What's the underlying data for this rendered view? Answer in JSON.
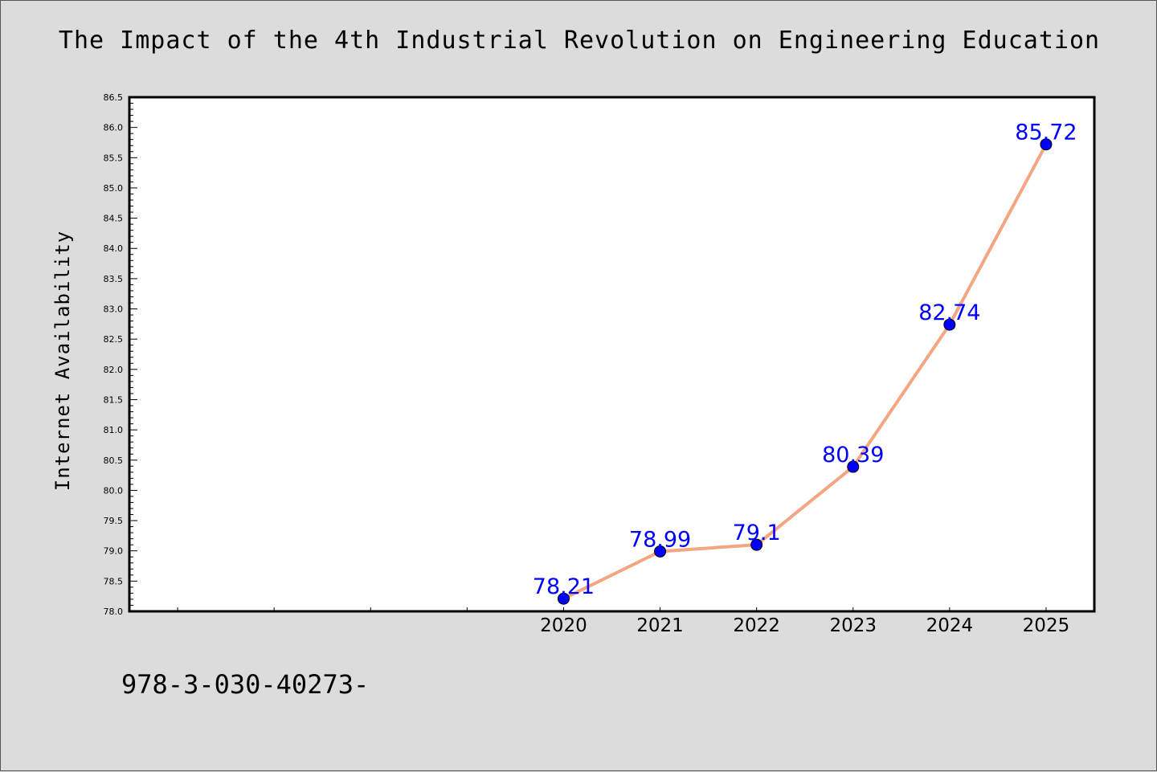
{
  "chart_data": {
    "type": "line",
    "title": "The Impact of the 4th Industrial Revolution on Engineering Education",
    "xlabel": "",
    "ylabel": "Internet Availability",
    "x": [
      2020,
      2021,
      2022,
      2023,
      2024,
      2025
    ],
    "x_tick_labels": [
      "2020",
      "2021",
      "2022",
      "2023",
      "2024",
      "2025"
    ],
    "series": [
      {
        "values": [
          78.21,
          78.99,
          79.1,
          80.39,
          82.74,
          85.72
        ],
        "data_labels": [
          "78.21",
          "78.99",
          "79.1",
          "80.39",
          "82.74",
          "85.72"
        ],
        "line_color": "#f4a582",
        "marker_color": "#0000ff"
      }
    ],
    "ylim": [
      78.0,
      86.5
    ],
    "xlim": [
      2015.5,
      2025.5
    ],
    "y_tick_labels": [
      "78.0",
      "78.5",
      "79.0",
      "79.5",
      "80.0",
      "80.5",
      "81.0",
      "81.5",
      "82.0",
      "82.5",
      "83.0",
      "83.5",
      "84.0",
      "84.5",
      "85.0",
      "85.5",
      "86.0",
      "86.5"
    ],
    "grid": false,
    "legend": "none"
  },
  "footer_text": "978-3-030-40273-",
  "colors": {
    "background": "#dcdcdc",
    "plot_background": "#ffffff",
    "line": "#f4a582",
    "marker": "#0000ff",
    "data_label": "#0000ff"
  }
}
